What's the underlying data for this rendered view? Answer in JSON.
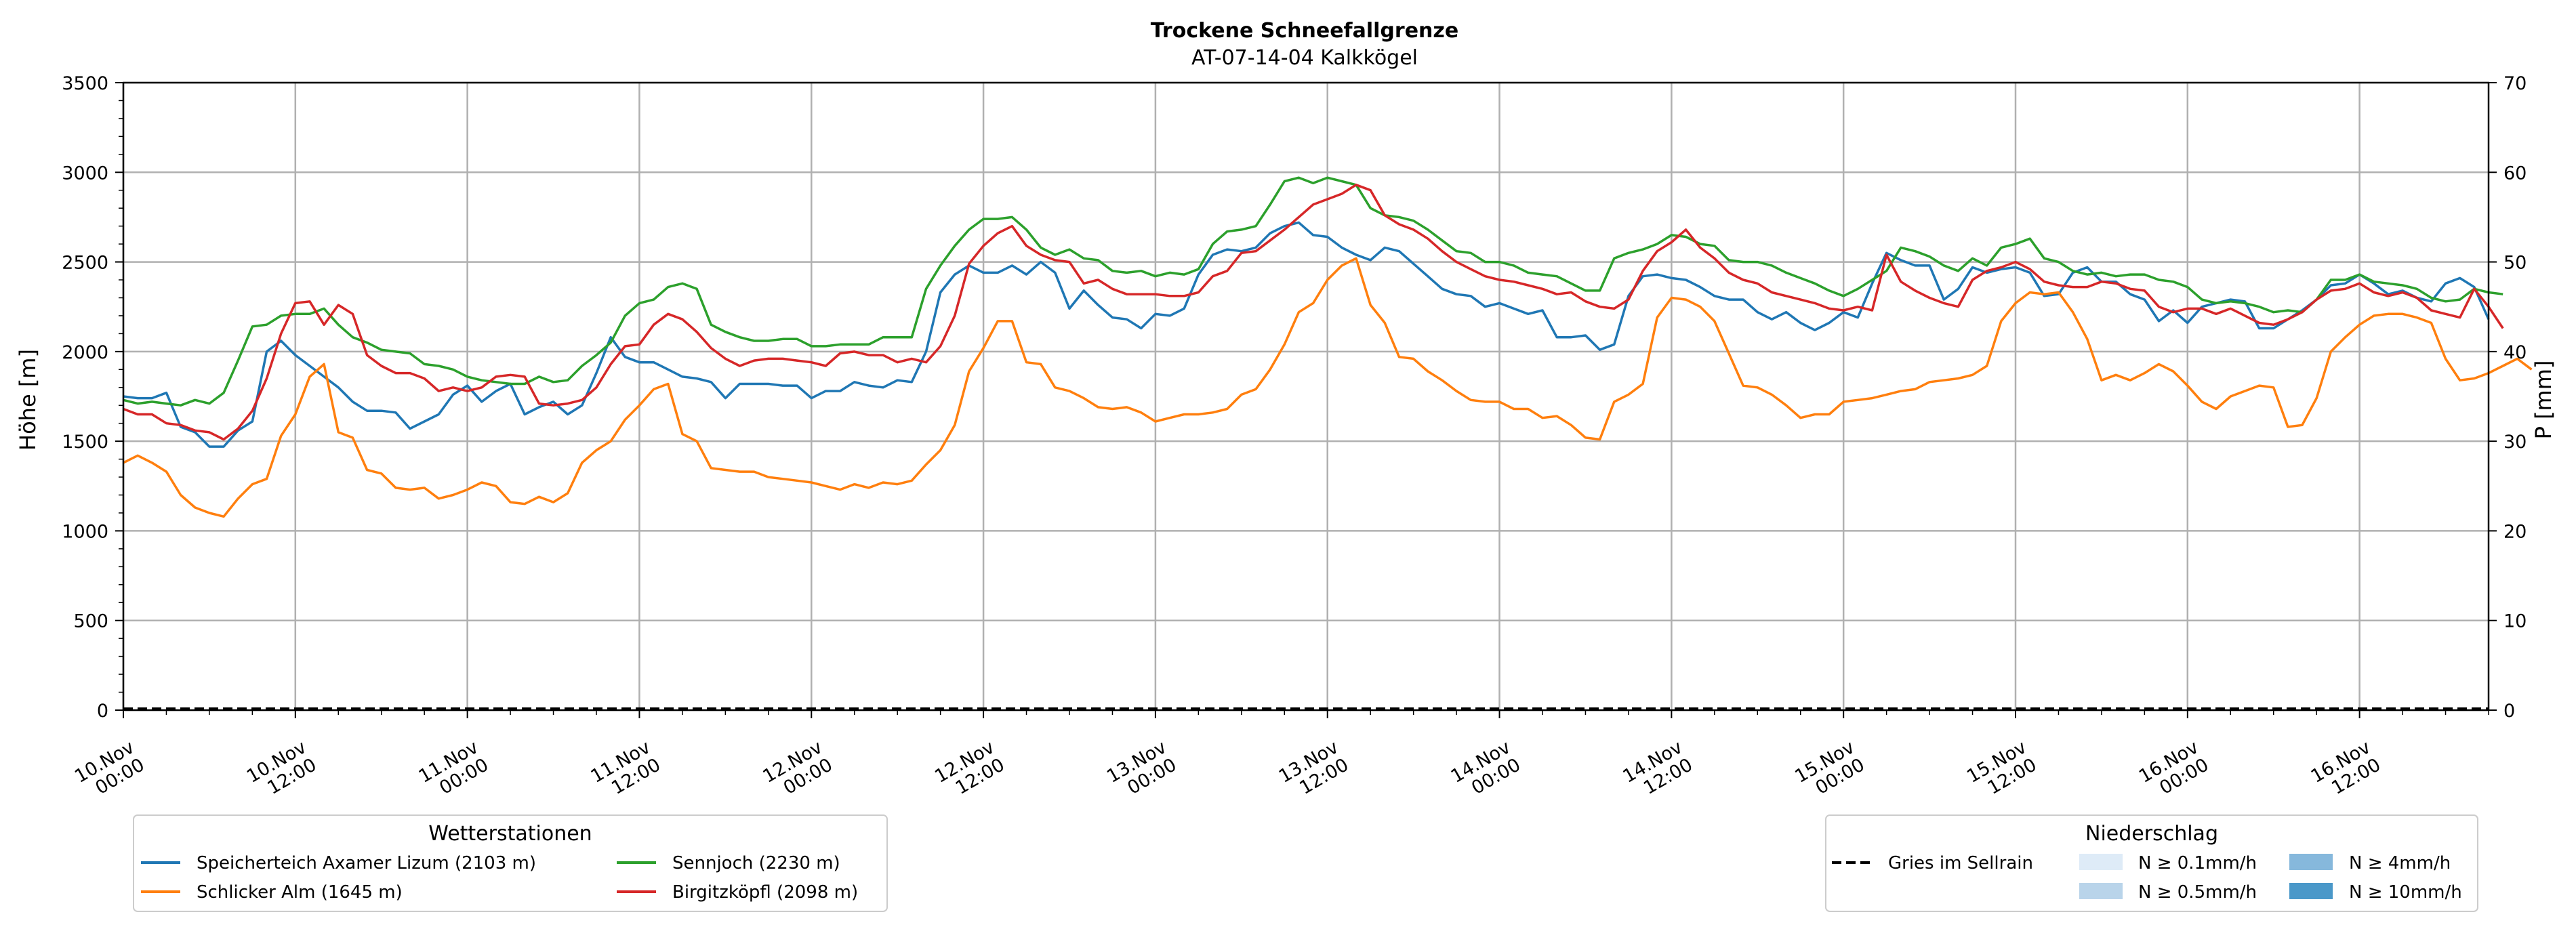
{
  "chart_data": {
    "type": "line",
    "title": "Trockene Schneefallgrenze",
    "subtitle": "AT-07-14-04 Kalkkögel",
    "ylabel": "Höhe [m]",
    "y2label": "P [mm]",
    "ylim": [
      0,
      3500
    ],
    "y2lim": [
      0,
      70
    ],
    "yticks": [
      0,
      500,
      1000,
      1500,
      2000,
      2500,
      3000,
      3500
    ],
    "y2ticks": [
      0,
      10,
      20,
      30,
      40,
      50,
      60,
      70
    ],
    "grid": true,
    "x_start": "10.Nov 00:00",
    "x_end": "16.Nov 23:00",
    "x_step_hours": 1,
    "xtick_labels": [
      [
        "10.Nov",
        "00:00"
      ],
      [
        "10.Nov",
        "12:00"
      ],
      [
        "11.Nov",
        "00:00"
      ],
      [
        "11.Nov",
        "12:00"
      ],
      [
        "12.Nov",
        "00:00"
      ],
      [
        "12.Nov",
        "12:00"
      ],
      [
        "13.Nov",
        "00:00"
      ],
      [
        "13.Nov",
        "12:00"
      ],
      [
        "14.Nov",
        "00:00"
      ],
      [
        "14.Nov",
        "12:00"
      ],
      [
        "15.Nov",
        "00:00"
      ],
      [
        "15.Nov",
        "12:00"
      ],
      [
        "16.Nov",
        "00:00"
      ],
      [
        "16.Nov",
        "12:00"
      ]
    ],
    "series": [
      {
        "name": "Speicherteich Axamer Lizum (2103 m)",
        "color": "#1f77b4",
        "values": [
          1750,
          1740,
          1740,
          1770,
          1580,
          1550,
          1470,
          1470,
          1560,
          1610,
          2000,
          2060,
          1980,
          1920,
          1860,
          1800,
          1720,
          1670,
          1670,
          1660,
          1570,
          1610,
          1650,
          1760,
          1810,
          1720,
          1780,
          1820,
          1650,
          1690,
          1720,
          1650,
          1700,
          1880,
          2080,
          1970,
          1940,
          1940,
          1900,
          1860,
          1850,
          1830,
          1740,
          1820,
          1820,
          1820,
          1810,
          1810,
          1740,
          1780,
          1780,
          1830,
          1810,
          1800,
          1840,
          1830,
          2000,
          2330,
          2430,
          2480,
          2440,
          2440,
          2480,
          2430,
          2500,
          2440,
          2240,
          2340,
          2260,
          2190,
          2180,
          2130,
          2210,
          2200,
          2240,
          2430,
          2540,
          2570,
          2560,
          2580,
          2660,
          2700,
          2720,
          2650,
          2640,
          2580,
          2540,
          2510,
          2580,
          2560,
          2490,
          2420,
          2350,
          2320,
          2310,
          2250,
          2270,
          2240,
          2210,
          2230,
          2080,
          2080,
          2090,
          2010,
          2040,
          2310,
          2420,
          2430,
          2410,
          2400,
          2360,
          2310,
          2290,
          2290,
          2220,
          2180,
          2220,
          2160,
          2120,
          2160,
          2220,
          2190,
          2380,
          2550,
          2510,
          2480,
          2480,
          2290,
          2350,
          2470,
          2440,
          2460,
          2470,
          2440,
          2310,
          2320,
          2440,
          2470,
          2390,
          2390,
          2320,
          2290,
          2170,
          2230,
          2160,
          2250,
          2270,
          2290,
          2280,
          2130,
          2130,
          2180,
          2230,
          2290,
          2370,
          2380,
          2430,
          2380,
          2320,
          2340,
          2300,
          2280,
          2380,
          2410,
          2360,
          2180
        ]
      },
      {
        "name": "Schlicker Alm (1645 m)",
        "color": "#ff7f0e",
        "values": [
          1380,
          1420,
          1380,
          1330,
          1200,
          1130,
          1100,
          1080,
          1180,
          1260,
          1290,
          1530,
          1650,
          1860,
          1930,
          1550,
          1520,
          1340,
          1320,
          1240,
          1230,
          1240,
          1180,
          1200,
          1230,
          1270,
          1250,
          1160,
          1150,
          1190,
          1160,
          1210,
          1380,
          1450,
          1500,
          1620,
          1700,
          1790,
          1820,
          1540,
          1500,
          1350,
          1340,
          1330,
          1330,
          1300,
          1290,
          1280,
          1270,
          1250,
          1230,
          1260,
          1240,
          1270,
          1260,
          1280,
          1370,
          1450,
          1590,
          1890,
          2020,
          2170,
          2170,
          1940,
          1930,
          1800,
          1780,
          1740,
          1690,
          1680,
          1690,
          1660,
          1610,
          1630,
          1650,
          1650,
          1660,
          1680,
          1760,
          1790,
          1900,
          2040,
          2220,
          2270,
          2400,
          2480,
          2520,
          2260,
          2160,
          1970,
          1960,
          1890,
          1840,
          1780,
          1730,
          1720,
          1720,
          1680,
          1680,
          1630,
          1640,
          1590,
          1520,
          1510,
          1720,
          1760,
          1820,
          2190,
          2300,
          2290,
          2250,
          2170,
          1990,
          1810,
          1800,
          1760,
          1700,
          1630,
          1650,
          1650,
          1720,
          1730,
          1740,
          1760,
          1780,
          1790,
          1830,
          1840,
          1850,
          1870,
          1920,
          2170,
          2270,
          2330,
          2320,
          2330,
          2220,
          2070,
          1840,
          1870,
          1840,
          1880,
          1930,
          1890,
          1810,
          1720,
          1680,
          1750,
          1780,
          1810,
          1800,
          1580,
          1590,
          1740,
          2000,
          2080,
          2150,
          2200,
          2210,
          2210,
          2190,
          2160,
          1960,
          1840,
          1850,
          1880,
          1920,
          1960,
          1900
        ]
      },
      {
        "name": "Sennjoch (2230 m)",
        "color": "#2ca02c",
        "values": [
          1730,
          1710,
          1720,
          1710,
          1700,
          1730,
          1710,
          1770,
          1950,
          2140,
          2150,
          2200,
          2210,
          2210,
          2240,
          2150,
          2080,
          2050,
          2010,
          2000,
          1990,
          1930,
          1920,
          1900,
          1860,
          1840,
          1830,
          1820,
          1820,
          1860,
          1830,
          1840,
          1920,
          1980,
          2050,
          2200,
          2270,
          2290,
          2360,
          2380,
          2350,
          2150,
          2110,
          2080,
          2060,
          2060,
          2070,
          2070,
          2030,
          2030,
          2040,
          2040,
          2040,
          2080,
          2080,
          2080,
          2350,
          2480,
          2590,
          2680,
          2740,
          2740,
          2750,
          2680,
          2580,
          2540,
          2570,
          2520,
          2510,
          2450,
          2440,
          2450,
          2420,
          2440,
          2430,
          2460,
          2600,
          2670,
          2680,
          2700,
          2820,
          2950,
          2970,
          2940,
          2970,
          2950,
          2930,
          2800,
          2760,
          2750,
          2730,
          2680,
          2620,
          2560,
          2550,
          2500,
          2500,
          2480,
          2440,
          2430,
          2420,
          2380,
          2340,
          2340,
          2520,
          2550,
          2570,
          2600,
          2650,
          2640,
          2600,
          2590,
          2510,
          2500,
          2500,
          2480,
          2440,
          2410,
          2380,
          2340,
          2310,
          2350,
          2400,
          2450,
          2580,
          2560,
          2530,
          2480,
          2450,
          2520,
          2480,
          2580,
          2600,
          2630,
          2520,
          2500,
          2450,
          2430,
          2440,
          2420,
          2430,
          2430,
          2400,
          2390,
          2360,
          2290,
          2270,
          2280,
          2270,
          2250,
          2220,
          2230,
          2220,
          2290,
          2400,
          2400,
          2430,
          2390,
          2380,
          2370,
          2350,
          2300,
          2280,
          2290,
          2350,
          2330,
          2320
        ]
      },
      {
        "name": "Birgitzköpfl (2098 m)",
        "color": "#d62728",
        "values": [
          1680,
          1650,
          1650,
          1600,
          1590,
          1560,
          1550,
          1510,
          1570,
          1670,
          1850,
          2100,
          2270,
          2280,
          2150,
          2260,
          2210,
          1980,
          1920,
          1880,
          1880,
          1850,
          1780,
          1800,
          1780,
          1800,
          1860,
          1870,
          1860,
          1710,
          1700,
          1710,
          1730,
          1800,
          1930,
          2030,
          2040,
          2150,
          2210,
          2180,
          2110,
          2020,
          1960,
          1920,
          1950,
          1960,
          1960,
          1950,
          1940,
          1920,
          1990,
          2000,
          1980,
          1980,
          1940,
          1960,
          1940,
          2030,
          2200,
          2490,
          2590,
          2660,
          2700,
          2590,
          2540,
          2510,
          2500,
          2380,
          2400,
          2350,
          2320,
          2320,
          2320,
          2310,
          2310,
          2330,
          2420,
          2450,
          2550,
          2560,
          2620,
          2680,
          2750,
          2820,
          2850,
          2880,
          2930,
          2900,
          2760,
          2710,
          2680,
          2630,
          2560,
          2500,
          2460,
          2420,
          2400,
          2390,
          2370,
          2350,
          2320,
          2330,
          2280,
          2250,
          2240,
          2290,
          2450,
          2560,
          2610,
          2680,
          2580,
          2520,
          2440,
          2400,
          2380,
          2330,
          2310,
          2290,
          2270,
          2240,
          2230,
          2250,
          2230,
          2540,
          2390,
          2340,
          2300,
          2270,
          2250,
          2400,
          2450,
          2470,
          2500,
          2460,
          2390,
          2370,
          2360,
          2360,
          2390,
          2380,
          2350,
          2340,
          2250,
          2220,
          2240,
          2240,
          2210,
          2240,
          2200,
          2160,
          2150,
          2180,
          2220,
          2290,
          2340,
          2350,
          2380,
          2330,
          2310,
          2330,
          2300,
          2230,
          2210,
          2190,
          2350,
          2250,
          2130
        ]
      },
      {
        "name": "Gries im Sellrain",
        "color": "#000000",
        "axis": "right",
        "style": "dashed",
        "values": [
          0,
          0
        ]
      }
    ],
    "legends": [
      {
        "title": "Wetterstationen",
        "placement": "lower-left",
        "entries": [
          "Speicherteich Axamer Lizum (2103 m)",
          "Schlicker Alm (1645 m)",
          "Sennjoch (2230 m)",
          "Birgitzköpfl (2098 m)"
        ]
      },
      {
        "title": "Niederschlag",
        "placement": "lower-right",
        "line_entry": "Gries im Sellrain",
        "patches": [
          {
            "label": "N ≥ 0.1mm/h",
            "color": "#deebf7"
          },
          {
            "label": "N ≥ 0.5mm/h",
            "color": "#b9d4ea"
          },
          {
            "label": "N ≥ 4mm/h",
            "color": "#86b8dc"
          },
          {
            "label": "N ≥ 10mm/h",
            "color": "#4a98c9"
          }
        ]
      }
    ]
  }
}
